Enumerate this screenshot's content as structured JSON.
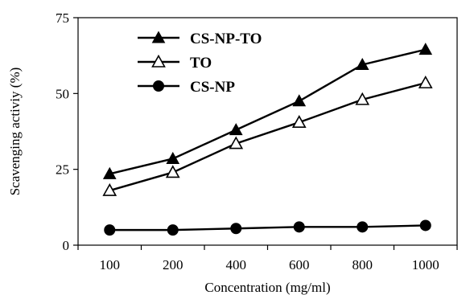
{
  "chart_data": {
    "type": "line",
    "title": "",
    "xlabel": "Concentration (mg/ml)",
    "ylabel": "Scavenging activiy (%)",
    "categories": [
      "100",
      "200",
      "400",
      "600",
      "800",
      "1000"
    ],
    "ylim": [
      0,
      75
    ],
    "yticks": [
      "0",
      "25",
      "50",
      "75"
    ],
    "grid": false,
    "legend_position": "top-left",
    "series": [
      {
        "name": "CS-NP-TO",
        "marker": "filled-triangle",
        "color": "#000000",
        "values": [
          23.5,
          28.5,
          38,
          47.5,
          59.5,
          64.5
        ]
      },
      {
        "name": "TO",
        "marker": "open-triangle",
        "color": "#000000",
        "values": [
          18,
          24,
          33.5,
          40.5,
          48,
          53.5
        ]
      },
      {
        "name": "CS-NP",
        "marker": "filled-circle",
        "color": "#000000",
        "values": [
          5,
          5,
          5.5,
          6,
          6,
          6.5
        ]
      }
    ]
  }
}
